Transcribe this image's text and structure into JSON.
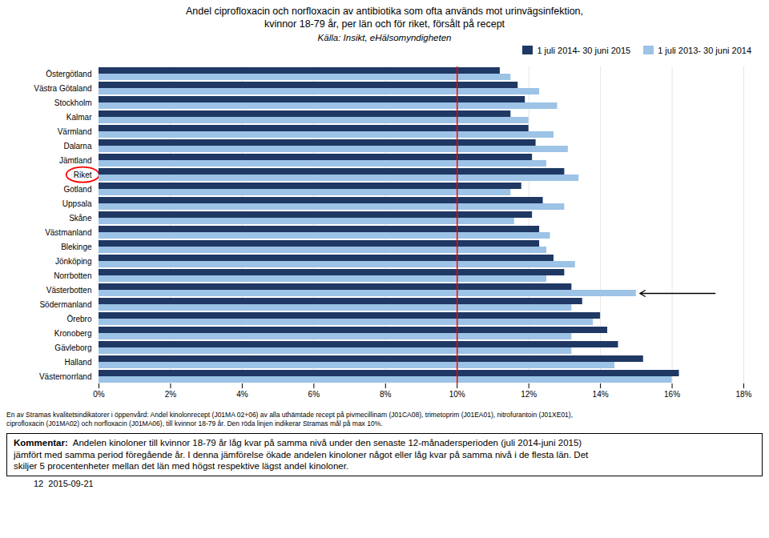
{
  "chart_data": {
    "type": "bar",
    "orientation": "horizontal",
    "title": "Andel ciprofloxacin och norfloxacin av antibiotika som ofta används mot urinvägsinfektion,\nkvinnor 18-79 år, per län och för riket, försålt på recept",
    "subtitle": "Källa: Insikt, eHälsomyndigheten",
    "categories": [
      "Västernorrland",
      "Halland",
      "Gävleborg",
      "Kronoberg",
      "Örebro",
      "Södermanland",
      "Västerbotten",
      "Norrbotten",
      "Jönköping",
      "Blekinge",
      "Västmanland",
      "Skåne",
      "Uppsala",
      "Gotland",
      "Riket",
      "Jämtland",
      "Dalarna",
      "Värmland",
      "Kalmar",
      "Stockholm",
      "Västra Götaland",
      "Östergötland"
    ],
    "series": [
      {
        "name": "1 juli 2014- 30 juni 2015",
        "color": "#1f3864",
        "values": [
          16.2,
          15.2,
          14.5,
          14.2,
          14.0,
          13.5,
          13.2,
          13.0,
          12.7,
          12.3,
          12.3,
          12.1,
          12.4,
          11.8,
          13.0,
          12.1,
          12.2,
          12.0,
          11.5,
          11.9,
          11.7,
          11.2
        ]
      },
      {
        "name": "1 juli 2013- 30 juni 2014",
        "color": "#9dc3e6",
        "values": [
          16.0,
          14.4,
          13.2,
          13.2,
          13.8,
          13.2,
          15.0,
          12.5,
          13.3,
          12.5,
          12.6,
          11.6,
          13.0,
          11.5,
          13.4,
          12.5,
          13.1,
          12.7,
          12.0,
          12.8,
          12.3,
          11.5
        ]
      }
    ],
    "xlim": [
      0,
      18
    ],
    "xticks": [
      {
        "value": 0,
        "label": "0%"
      },
      {
        "value": 2,
        "label": "2%"
      },
      {
        "value": 4,
        "label": "4%"
      },
      {
        "value": 6,
        "label": "6%"
      },
      {
        "value": 8,
        "label": "8%"
      },
      {
        "value": 10,
        "label": "10%"
      },
      {
        "value": 12,
        "label": "12%"
      },
      {
        "value": 14,
        "label": "14%"
      },
      {
        "value": 16,
        "label": "16%"
      },
      {
        "value": 18,
        "label": "18%"
      }
    ],
    "grid": true,
    "legend": "upper right",
    "reference_line": {
      "x": 10.0,
      "color": "red"
    },
    "highlight": {
      "category": "Riket",
      "color": "red"
    },
    "arrow": {
      "category": "Västerbotten",
      "series": "1 juli 2013- 30 juni 2014",
      "x_tail": 17.2,
      "x_head": 15.1,
      "color": "black"
    },
    "footnote": "En av Stramas kvalitetsindikatorer i öppenvård: Andel kinolonrecept (J01MA 02+06) av alla uthämtade recept på pivmecillinam (J01CA08), trimetoprim (J01EA01), nitrofurantoin (J01XE01),\nciprofloxacin (J01MA02) och norfloxacin (J01MA06), till kvinnor 18-79 år. Den röda linjen indikerar Stramas mål på max 10%.",
    "comment": {
      "title": "Kommentar:",
      "text": "Andelen kinoloner till kvinnor 18-79 år låg kvar på samma nivå under den senaste 12-månadersperioden (juli 2014-juni 2015)\njämfört med samma period föregående år. I denna jämförelse ökade andelen kinoloner något eller låg kvar på samma nivå i de flesta län. Det\nskiljer 5 procentenheter mellan det län med högst respektive lägst andel kinoloner."
    },
    "date": "12  2015-09-21"
  }
}
